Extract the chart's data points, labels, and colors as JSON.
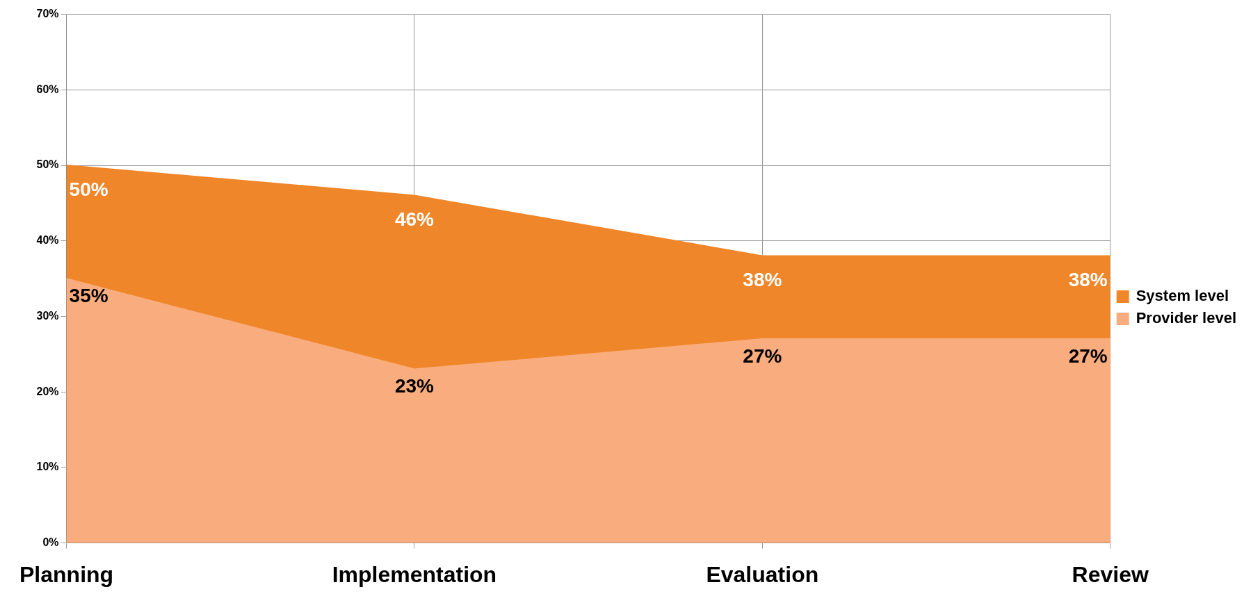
{
  "chart_data": {
    "type": "area",
    "categories": [
      "Planning",
      "Implementation",
      "Evaluation",
      "Review"
    ],
    "series": [
      {
        "name": "System level",
        "color": "#f0862a",
        "values": [
          50,
          46,
          38,
          38
        ],
        "value_labels": [
          "50%",
          "46%",
          "38%",
          "38%"
        ]
      },
      {
        "name": "Provider level",
        "color": "#f9ad7e",
        "values": [
          35,
          23,
          27,
          27
        ],
        "value_labels": [
          "35%",
          "23%",
          "27%",
          "27%"
        ]
      }
    ],
    "ylim": [
      0,
      70
    ],
    "yticks": [
      {
        "value": 0,
        "label": "0%"
      },
      {
        "value": 10,
        "label": "10%"
      },
      {
        "value": 20,
        "label": "20%"
      },
      {
        "value": 30,
        "label": "30%"
      },
      {
        "value": 40,
        "label": "40%"
      },
      {
        "value": 50,
        "label": "50%"
      },
      {
        "value": 60,
        "label": "60%"
      },
      {
        "value": 70,
        "label": "70%"
      }
    ],
    "grid": true,
    "legend": "right"
  }
}
